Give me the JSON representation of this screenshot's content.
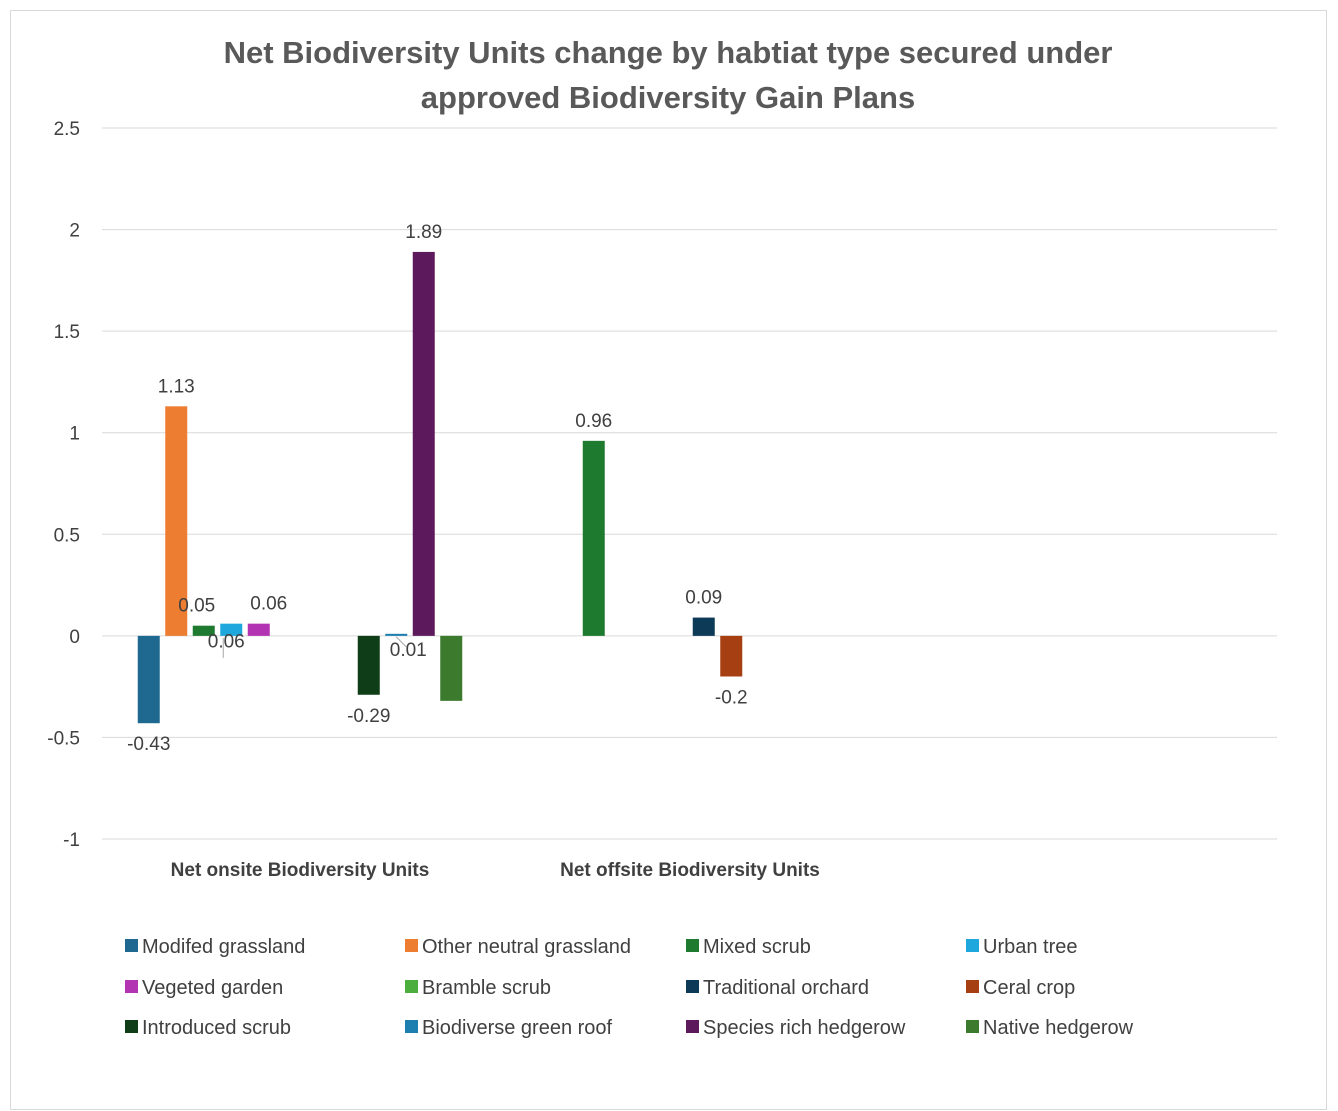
{
  "chart_data": {
    "type": "bar",
    "title_lines": [
      "Net Biodiversity Units change by habtiat type secured under",
      "approved Biodiversity Gain Plans"
    ],
    "xlabel": "",
    "ylabel": "",
    "ylim": [
      -1,
      2.5
    ],
    "yticks": [
      "2.5",
      "2",
      "1.5",
      "1",
      "0.5",
      "0",
      "-0.5",
      "-1"
    ],
    "grid": true,
    "legend_position": "bottom",
    "categories": [
      "Net onsite Biodiversity Units",
      "Net offsite Biodiversity Units"
    ],
    "series": [
      {
        "name": "Modifed grassland",
        "color": "#1f6991",
        "values": [
          -0.43,
          null
        ]
      },
      {
        "name": "Other neutral grassland",
        "color": "#ed7d31",
        "values": [
          1.13,
          null
        ]
      },
      {
        "name": "Mixed scrub",
        "color": "#1e7a2f",
        "values": [
          0.05,
          0.96
        ]
      },
      {
        "name": "Urban tree",
        "color": "#1ea7dd",
        "values": [
          0.06,
          null
        ]
      },
      {
        "name": "Vegeted garden",
        "color": "#b234b2",
        "values": [
          0.06,
          null
        ]
      },
      {
        "name": "Bramble scrub",
        "color": "#4cae3c",
        "values": [
          null,
          null
        ]
      },
      {
        "name": "Traditional orchard",
        "color": "#0d3a57",
        "values": [
          null,
          0.09
        ]
      },
      {
        "name": "Ceral crop",
        "color": "#a64012",
        "values": [
          null,
          -0.2
        ]
      },
      {
        "name": "Introduced scrub",
        "color": "#0f3d17",
        "values": [
          -0.29,
          null
        ]
      },
      {
        "name": "Biodiverse green roof",
        "color": "#1c7fb0",
        "values": [
          0.01,
          null
        ]
      },
      {
        "name": "Species rich hedgerow",
        "color": "#5c1a5c",
        "values": [
          1.89,
          null
        ]
      },
      {
        "name": "Native hedgerow",
        "color": "#3c7a2e",
        "values": [
          -0.32,
          null
        ]
      }
    ],
    "data_labels": [
      {
        "text": "-0.43",
        "series": 0,
        "category": 0
      },
      {
        "text": "1.13",
        "series": 1,
        "category": 0
      },
      {
        "text": "0.05",
        "series": 2,
        "category": 0
      },
      {
        "text": "0.06",
        "series": 3,
        "category": 0
      },
      {
        "text": "0.06",
        "series": 4,
        "category": 0
      },
      {
        "text": "-0.29",
        "series": 8,
        "category": 0
      },
      {
        "text": "0.01",
        "series": 9,
        "category": 0
      },
      {
        "text": "1.89",
        "series": 10,
        "category": 0
      },
      {
        "text": "0.96",
        "series": 2,
        "category": 1
      },
      {
        "text": "0.09",
        "series": 6,
        "category": 1
      },
      {
        "text": "-0.2",
        "series": 7,
        "category": 1
      }
    ]
  }
}
